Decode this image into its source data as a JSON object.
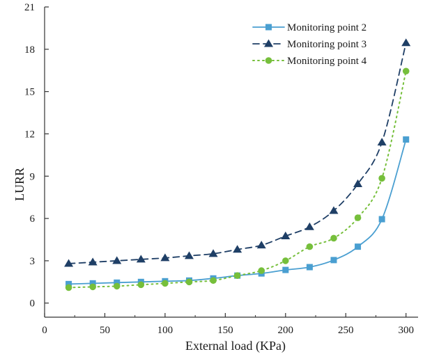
{
  "chart_data": {
    "type": "line",
    "title": "",
    "xlabel": "External load (KPa)",
    "ylabel": "LURR",
    "xlim": [
      0,
      310
    ],
    "ylim": [
      -1,
      21
    ],
    "x_ticks": [
      0,
      50,
      100,
      150,
      200,
      250,
      300
    ],
    "y_ticks": [
      0,
      3,
      6,
      9,
      12,
      15,
      18,
      21
    ],
    "grid": false,
    "legend_position": "top-right",
    "x": [
      20,
      40,
      60,
      80,
      100,
      120,
      140,
      160,
      180,
      200,
      220,
      240,
      260,
      280,
      300
    ],
    "series": [
      {
        "name": "Monitoring point 2",
        "color": "#4a9fd1",
        "marker": "square",
        "line_style": "solid",
        "values": [
          1.35,
          1.4,
          1.45,
          1.5,
          1.55,
          1.6,
          1.75,
          1.95,
          2.1,
          2.35,
          2.55,
          3.05,
          4.0,
          5.95,
          11.6
        ]
      },
      {
        "name": "Monitoring point 3",
        "color": "#1f3f66",
        "marker": "triangle",
        "line_style": "dashed",
        "values": [
          2.8,
          2.9,
          3.0,
          3.1,
          3.2,
          3.35,
          3.5,
          3.8,
          4.1,
          4.75,
          5.4,
          6.55,
          8.45,
          11.4,
          18.45
        ]
      },
      {
        "name": "Monitoring point 4",
        "color": "#76bf3b",
        "marker": "circle",
        "line_style": "dotted",
        "values": [
          1.1,
          1.15,
          1.2,
          1.3,
          1.4,
          1.5,
          1.6,
          1.95,
          2.3,
          3.0,
          4.0,
          4.6,
          6.05,
          8.85,
          16.45
        ]
      }
    ]
  }
}
